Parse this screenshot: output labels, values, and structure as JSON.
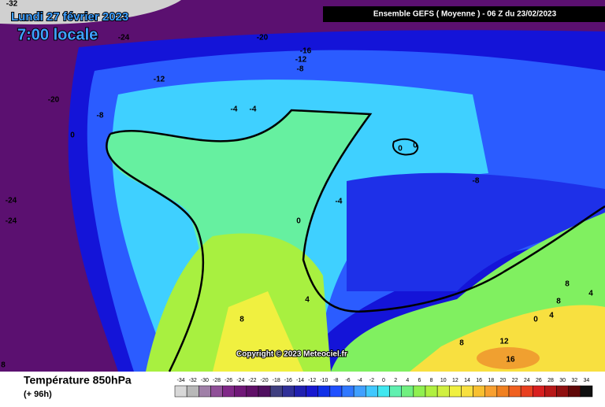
{
  "header": {
    "date": "Lundi 27 février 2023",
    "time": "7:00 locale",
    "model": "Ensemble GEFS  ( Moyenne )  -  06 Z du 23/02/2023"
  },
  "map": {
    "copyright": "Copyright © 2023 Meteociel.fr",
    "labels": [
      -32,
      -24,
      -20,
      -16,
      -12,
      -8,
      -12,
      -20,
      -8,
      -4,
      -4,
      0,
      0,
      0,
      -24,
      -24,
      -4,
      -8,
      0,
      4,
      8,
      8,
      8,
      4,
      4,
      0,
      8,
      12,
      16,
      8
    ]
  },
  "legend": {
    "title": "Température 850hPa",
    "lead": "(+ 96h)",
    "labels": [
      -34,
      -32,
      -30,
      -28,
      -26,
      -24,
      -22,
      -20,
      -18,
      -16,
      -14,
      -12,
      -10,
      -8,
      -6,
      -4,
      -2,
      0,
      2,
      4,
      6,
      8,
      10,
      12,
      14,
      16,
      18,
      20,
      22,
      24,
      26,
      28,
      30,
      32,
      34
    ],
    "colors": [
      "#d8d8d8",
      "#b8b8b8",
      "#a080a8",
      "#905098",
      "#802888",
      "#701878",
      "#601068",
      "#501060",
      "#404080",
      "#303098",
      "#2020b0",
      "#1818d0",
      "#1030e8",
      "#2050ff",
      "#3078ff",
      "#40a0ff",
      "#40c8ff",
      "#40e8f0",
      "#60f0b0",
      "#70f080",
      "#90f050",
      "#b0f040",
      "#d0f040",
      "#f0f040",
      "#f8e040",
      "#f8c030",
      "#f8a030",
      "#f08020",
      "#f06020",
      "#e84020",
      "#d82020",
      "#b81818",
      "#901010",
      "#600808",
      "#101010"
    ]
  }
}
